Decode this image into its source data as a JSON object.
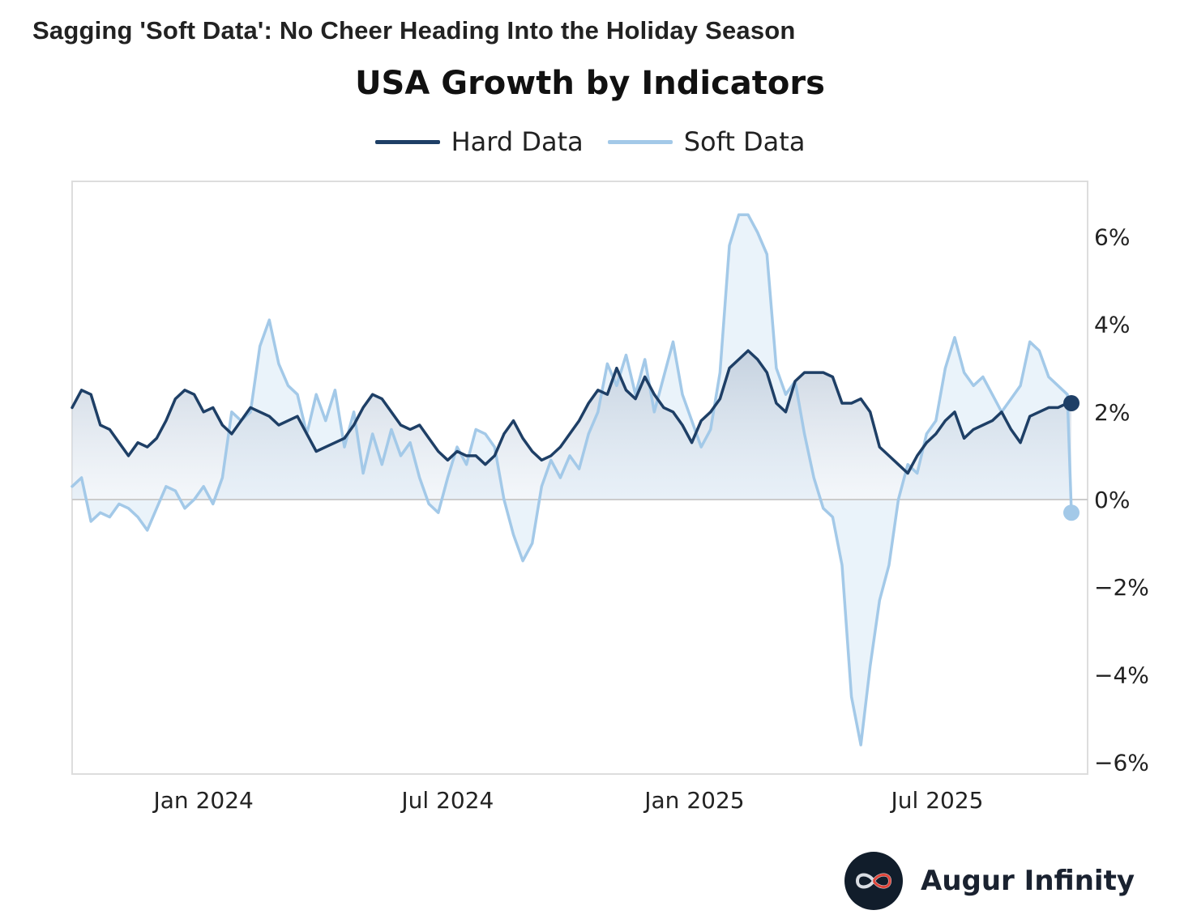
{
  "headline": "Sagging 'Soft Data': No Cheer Heading Into the Holiday Season",
  "brand": {
    "name": "Augur Infinity",
    "logo_icon": "infinity-icon"
  },
  "colors": {
    "hard": "#1e3f66",
    "soft": "#a3c9e8",
    "axis": "#dddddd",
    "zero": "#cccccc"
  },
  "chart_data": {
    "type": "line",
    "title": "USA Growth by Indicators",
    "xlabel": "",
    "ylabel": "",
    "ylim": [
      -6.3,
      7.2
    ],
    "xlim": [
      "2023-09-25",
      "2025-11-12"
    ],
    "y_axis_position": "right",
    "yticks": [
      {
        "value": 6,
        "label": "6%"
      },
      {
        "value": 4,
        "label": "4%"
      },
      {
        "value": 2,
        "label": "2%"
      },
      {
        "value": 0,
        "label": "0%"
      },
      {
        "value": -2,
        "label": "−2%"
      },
      {
        "value": -4,
        "label": "−4%"
      },
      {
        "value": -6,
        "label": "−6%"
      }
    ],
    "xticks": [
      {
        "date": "2024-01-01",
        "label": "Jan 2024"
      },
      {
        "date": "2024-07-01",
        "label": "Jul 2024"
      },
      {
        "date": "2025-01-01",
        "label": "Jan 2025"
      },
      {
        "date": "2025-07-01",
        "label": "Jul 2025"
      }
    ],
    "legend": "top-center",
    "grid": false,
    "series": [
      {
        "name": "Hard Data",
        "color": "#1e3f66",
        "points": [
          [
            "2023-09-25",
            2.1
          ],
          [
            "2023-10-02",
            2.5
          ],
          [
            "2023-10-09",
            2.4
          ],
          [
            "2023-10-16",
            1.7
          ],
          [
            "2023-10-23",
            1.6
          ],
          [
            "2023-10-30",
            1.3
          ],
          [
            "2023-11-06",
            1.0
          ],
          [
            "2023-11-13",
            1.3
          ],
          [
            "2023-11-20",
            1.2
          ],
          [
            "2023-11-27",
            1.4
          ],
          [
            "2023-12-04",
            1.8
          ],
          [
            "2023-12-11",
            2.3
          ],
          [
            "2023-12-18",
            2.5
          ],
          [
            "2023-12-25",
            2.4
          ],
          [
            "2024-01-01",
            2.0
          ],
          [
            "2024-01-08",
            2.1
          ],
          [
            "2024-01-15",
            1.7
          ],
          [
            "2024-01-22",
            1.5
          ],
          [
            "2024-01-29",
            1.8
          ],
          [
            "2024-02-05",
            2.1
          ],
          [
            "2024-02-12",
            2.0
          ],
          [
            "2024-02-19",
            1.9
          ],
          [
            "2024-02-26",
            1.7
          ],
          [
            "2024-03-04",
            1.8
          ],
          [
            "2024-03-11",
            1.9
          ],
          [
            "2024-03-18",
            1.5
          ],
          [
            "2024-03-25",
            1.1
          ],
          [
            "2024-04-01",
            1.2
          ],
          [
            "2024-04-08",
            1.3
          ],
          [
            "2024-04-15",
            1.4
          ],
          [
            "2024-04-22",
            1.7
          ],
          [
            "2024-04-29",
            2.1
          ],
          [
            "2024-05-06",
            2.4
          ],
          [
            "2024-05-13",
            2.3
          ],
          [
            "2024-05-20",
            2.0
          ],
          [
            "2024-05-27",
            1.7
          ],
          [
            "2024-06-03",
            1.6
          ],
          [
            "2024-06-10",
            1.7
          ],
          [
            "2024-06-17",
            1.4
          ],
          [
            "2024-06-24",
            1.1
          ],
          [
            "2024-07-01",
            0.9
          ],
          [
            "2024-07-08",
            1.1
          ],
          [
            "2024-07-15",
            1.0
          ],
          [
            "2024-07-22",
            1.0
          ],
          [
            "2024-07-29",
            0.8
          ],
          [
            "2024-08-05",
            1.0
          ],
          [
            "2024-08-12",
            1.5
          ],
          [
            "2024-08-19",
            1.8
          ],
          [
            "2024-08-26",
            1.4
          ],
          [
            "2024-09-02",
            1.1
          ],
          [
            "2024-09-09",
            0.9
          ],
          [
            "2024-09-16",
            1.0
          ],
          [
            "2024-09-23",
            1.2
          ],
          [
            "2024-09-30",
            1.5
          ],
          [
            "2024-10-07",
            1.8
          ],
          [
            "2024-10-14",
            2.2
          ],
          [
            "2024-10-21",
            2.5
          ],
          [
            "2024-10-28",
            2.4
          ],
          [
            "2024-11-04",
            3.0
          ],
          [
            "2024-11-11",
            2.5
          ],
          [
            "2024-11-18",
            2.3
          ],
          [
            "2024-11-25",
            2.8
          ],
          [
            "2024-12-02",
            2.4
          ],
          [
            "2024-12-09",
            2.1
          ],
          [
            "2024-12-16",
            2.0
          ],
          [
            "2024-12-23",
            1.7
          ],
          [
            "2024-12-30",
            1.3
          ],
          [
            "2025-01-06",
            1.8
          ],
          [
            "2025-01-13",
            2.0
          ],
          [
            "2025-01-20",
            2.3
          ],
          [
            "2025-01-27",
            3.0
          ],
          [
            "2025-02-03",
            3.2
          ],
          [
            "2025-02-10",
            3.4
          ],
          [
            "2025-02-17",
            3.2
          ],
          [
            "2025-02-24",
            2.9
          ],
          [
            "2025-03-03",
            2.2
          ],
          [
            "2025-03-10",
            2.0
          ],
          [
            "2025-03-17",
            2.7
          ],
          [
            "2025-03-24",
            2.9
          ],
          [
            "2025-03-31",
            2.9
          ],
          [
            "2025-04-07",
            2.9
          ],
          [
            "2025-04-14",
            2.8
          ],
          [
            "2025-04-21",
            2.2
          ],
          [
            "2025-04-28",
            2.2
          ],
          [
            "2025-05-05",
            2.3
          ],
          [
            "2025-05-12",
            2.0
          ],
          [
            "2025-05-19",
            1.2
          ],
          [
            "2025-05-26",
            1.0
          ],
          [
            "2025-06-02",
            0.8
          ],
          [
            "2025-06-09",
            0.6
          ],
          [
            "2025-06-16",
            1.0
          ],
          [
            "2025-06-23",
            1.3
          ],
          [
            "2025-06-30",
            1.5
          ],
          [
            "2025-07-07",
            1.8
          ],
          [
            "2025-07-14",
            2.0
          ],
          [
            "2025-07-21",
            1.4
          ],
          [
            "2025-07-28",
            1.6
          ],
          [
            "2025-08-04",
            1.7
          ],
          [
            "2025-08-11",
            1.8
          ],
          [
            "2025-08-18",
            2.0
          ],
          [
            "2025-08-25",
            1.6
          ],
          [
            "2025-09-01",
            1.3
          ],
          [
            "2025-09-08",
            1.9
          ],
          [
            "2025-09-15",
            2.0
          ],
          [
            "2025-09-22",
            2.1
          ],
          [
            "2025-09-29",
            2.1
          ],
          [
            "2025-10-06",
            2.2
          ],
          [
            "2025-10-09",
            2.2
          ]
        ]
      },
      {
        "name": "Soft Data",
        "color": "#a3c9e8",
        "points": [
          [
            "2023-09-25",
            0.3
          ],
          [
            "2023-10-02",
            0.5
          ],
          [
            "2023-10-09",
            -0.5
          ],
          [
            "2023-10-16",
            -0.3
          ],
          [
            "2023-10-23",
            -0.4
          ],
          [
            "2023-10-30",
            -0.1
          ],
          [
            "2023-11-06",
            -0.2
          ],
          [
            "2023-11-13",
            -0.4
          ],
          [
            "2023-11-20",
            -0.7
          ],
          [
            "2023-11-27",
            -0.2
          ],
          [
            "2023-12-04",
            0.3
          ],
          [
            "2023-12-11",
            0.2
          ],
          [
            "2023-12-18",
            -0.2
          ],
          [
            "2023-12-25",
            0.0
          ],
          [
            "2024-01-01",
            0.3
          ],
          [
            "2024-01-08",
            -0.1
          ],
          [
            "2024-01-15",
            0.5
          ],
          [
            "2024-01-22",
            2.0
          ],
          [
            "2024-01-29",
            1.8
          ],
          [
            "2024-02-05",
            2.0
          ],
          [
            "2024-02-12",
            3.5
          ],
          [
            "2024-02-19",
            4.1
          ],
          [
            "2024-02-26",
            3.1
          ],
          [
            "2024-03-04",
            2.6
          ],
          [
            "2024-03-11",
            2.4
          ],
          [
            "2024-03-18",
            1.5
          ],
          [
            "2024-03-25",
            2.4
          ],
          [
            "2024-04-01",
            1.8
          ],
          [
            "2024-04-08",
            2.5
          ],
          [
            "2024-04-15",
            1.2
          ],
          [
            "2024-04-22",
            2.0
          ],
          [
            "2024-04-29",
            0.6
          ],
          [
            "2024-05-06",
            1.5
          ],
          [
            "2024-05-13",
            0.8
          ],
          [
            "2024-05-20",
            1.6
          ],
          [
            "2024-05-27",
            1.0
          ],
          [
            "2024-06-03",
            1.3
          ],
          [
            "2024-06-10",
            0.5
          ],
          [
            "2024-06-17",
            -0.1
          ],
          [
            "2024-06-24",
            -0.3
          ],
          [
            "2024-07-01",
            0.5
          ],
          [
            "2024-07-08",
            1.2
          ],
          [
            "2024-07-15",
            0.8
          ],
          [
            "2024-07-22",
            1.6
          ],
          [
            "2024-07-29",
            1.5
          ],
          [
            "2024-08-05",
            1.2
          ],
          [
            "2024-08-12",
            0.0
          ],
          [
            "2024-08-19",
            -0.8
          ],
          [
            "2024-08-26",
            -1.4
          ],
          [
            "2024-09-02",
            -1.0
          ],
          [
            "2024-09-09",
            0.3
          ],
          [
            "2024-09-16",
            0.9
          ],
          [
            "2024-09-23",
            0.5
          ],
          [
            "2024-09-30",
            1.0
          ],
          [
            "2024-10-07",
            0.7
          ],
          [
            "2024-10-14",
            1.5
          ],
          [
            "2024-10-21",
            2.0
          ],
          [
            "2024-10-28",
            3.1
          ],
          [
            "2024-11-04",
            2.6
          ],
          [
            "2024-11-11",
            3.3
          ],
          [
            "2024-11-18",
            2.4
          ],
          [
            "2024-11-25",
            3.2
          ],
          [
            "2024-12-02",
            2.0
          ],
          [
            "2024-12-09",
            2.8
          ],
          [
            "2024-12-16",
            3.6
          ],
          [
            "2024-12-23",
            2.4
          ],
          [
            "2024-12-30",
            1.8
          ],
          [
            "2025-01-06",
            1.2
          ],
          [
            "2025-01-13",
            1.6
          ],
          [
            "2025-01-20",
            2.9
          ],
          [
            "2025-01-27",
            5.8
          ],
          [
            "2025-02-03",
            6.5
          ],
          [
            "2025-02-10",
            6.5
          ],
          [
            "2025-02-17",
            6.1
          ],
          [
            "2025-02-24",
            5.6
          ],
          [
            "2025-03-03",
            3.0
          ],
          [
            "2025-03-10",
            2.4
          ],
          [
            "2025-03-17",
            2.7
          ],
          [
            "2025-03-24",
            1.5
          ],
          [
            "2025-03-31",
            0.5
          ],
          [
            "2025-04-07",
            -0.2
          ],
          [
            "2025-04-14",
            -0.4
          ],
          [
            "2025-04-21",
            -1.5
          ],
          [
            "2025-04-28",
            -4.5
          ],
          [
            "2025-05-05",
            -5.6
          ],
          [
            "2025-05-12",
            -3.8
          ],
          [
            "2025-05-19",
            -2.3
          ],
          [
            "2025-05-26",
            -1.5
          ],
          [
            "2025-06-02",
            0.0
          ],
          [
            "2025-06-09",
            0.8
          ],
          [
            "2025-06-16",
            0.6
          ],
          [
            "2025-06-23",
            1.5
          ],
          [
            "2025-06-30",
            1.8
          ],
          [
            "2025-07-07",
            3.0
          ],
          [
            "2025-07-14",
            3.7
          ],
          [
            "2025-07-21",
            2.9
          ],
          [
            "2025-07-28",
            2.6
          ],
          [
            "2025-08-04",
            2.8
          ],
          [
            "2025-08-11",
            2.4
          ],
          [
            "2025-08-18",
            2.0
          ],
          [
            "2025-08-25",
            2.3
          ],
          [
            "2025-09-01",
            2.6
          ],
          [
            "2025-09-08",
            3.6
          ],
          [
            "2025-09-15",
            3.4
          ],
          [
            "2025-09-22",
            2.8
          ],
          [
            "2025-09-29",
            2.6
          ],
          [
            "2025-10-06",
            2.4
          ],
          [
            "2025-10-09",
            -0.3
          ]
        ]
      }
    ]
  }
}
